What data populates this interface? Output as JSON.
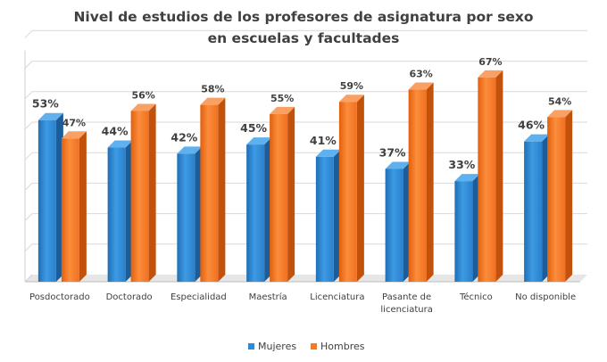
{
  "chart_data": {
    "type": "bar",
    "title_lines": [
      "Nivel de estudios de los profesores de asignatura por sexo",
      "en escuelas y facultades"
    ],
    "categories": [
      "Posdoctorado",
      "Doctorado",
      "Especialidad",
      "Maestría",
      "Licenciatura",
      "Pasante de licenciatura",
      "Técnico",
      "No disponible"
    ],
    "series": [
      {
        "name": "Mujeres",
        "values": [
          53,
          44,
          42,
          45,
          41,
          37,
          33,
          46
        ],
        "labels": [
          "53%",
          "44%",
          "42%",
          "45%",
          "41%",
          "37%",
          "33%",
          "46%"
        ],
        "color": "#2e8ad6"
      },
      {
        "name": "Hombres",
        "values": [
          47,
          56,
          58,
          55,
          59,
          63,
          67,
          54
        ],
        "labels": [
          "47%",
          "56%",
          "58%",
          "55%",
          "59%",
          "63%",
          "67%",
          "54%"
        ],
        "color": "#f47a25"
      }
    ],
    "ylim": [
      0,
      70
    ],
    "grid": true,
    "legend": "bottom",
    "three_d": true
  }
}
